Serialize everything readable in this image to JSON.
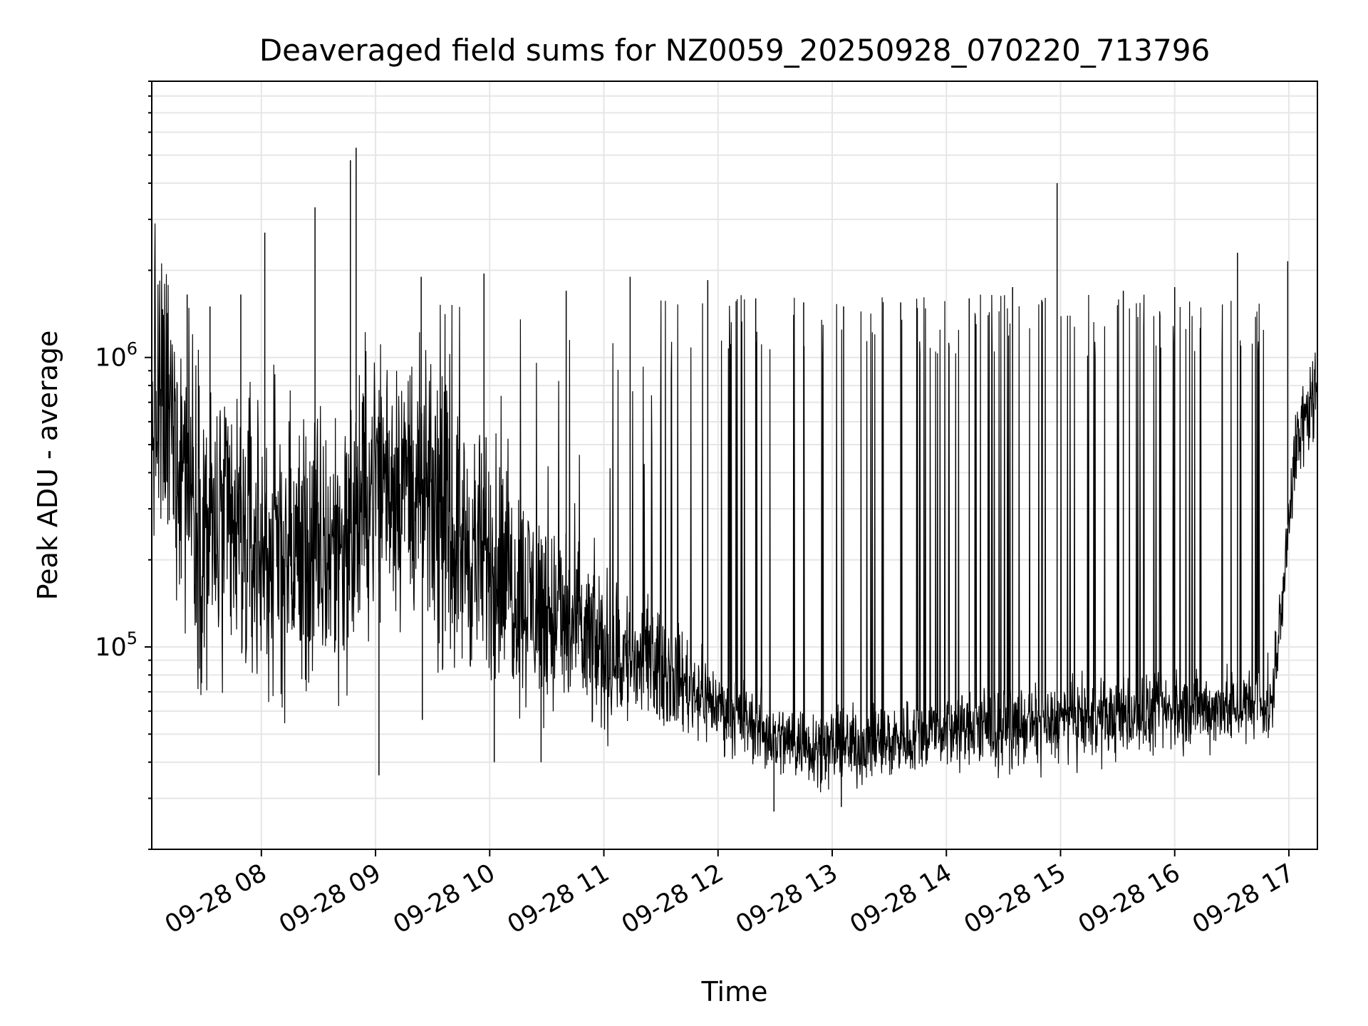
{
  "chart_data": {
    "type": "line",
    "title": "Deaveraged field sums for NZ0059_20250928_070220_713796",
    "xlabel": "Time",
    "ylabel": "Peak ADU - average",
    "yscale": "log",
    "xlim": [
      7.04,
      17.25
    ],
    "ylim": [
      20000,
      9000000
    ],
    "grid": true,
    "line_color": "#000000",
    "grid_color": "#e6e6e6",
    "x_ticks": [
      {
        "value": 8,
        "label": "09-28 08"
      },
      {
        "value": 9,
        "label": "09-28 09"
      },
      {
        "value": 10,
        "label": "09-28 10"
      },
      {
        "value": 11,
        "label": "09-28 11"
      },
      {
        "value": 12,
        "label": "09-28 12"
      },
      {
        "value": 13,
        "label": "09-28 13"
      },
      {
        "value": 14,
        "label": "09-28 14"
      },
      {
        "value": 15,
        "label": "09-28 15"
      },
      {
        "value": 16,
        "label": "09-28 16"
      },
      {
        "value": 17,
        "label": "09-28 17"
      }
    ],
    "y_major_ticks": [
      {
        "value": 100000,
        "base": "10",
        "exp": "5"
      },
      {
        "value": 1000000,
        "base": "10",
        "exp": "6"
      }
    ],
    "baseline_profile": [
      [
        7.04,
        700000
      ],
      [
        7.25,
        550000
      ],
      [
        7.5,
        250000
      ],
      [
        8.0,
        220000
      ],
      [
        8.5,
        200000
      ],
      [
        8.8,
        250000
      ],
      [
        9.0,
        400000
      ],
      [
        9.3,
        380000
      ],
      [
        9.6,
        250000
      ],
      [
        10.0,
        190000
      ],
      [
        10.5,
        130000
      ],
      [
        11.0,
        95000
      ],
      [
        11.5,
        85000
      ],
      [
        12.0,
        62000
      ],
      [
        12.5,
        48000
      ],
      [
        13.0,
        45000
      ],
      [
        13.5,
        47000
      ],
      [
        14.0,
        52000
      ],
      [
        14.5,
        52000
      ],
      [
        15.0,
        55000
      ],
      [
        15.5,
        57000
      ],
      [
        16.0,
        60000
      ],
      [
        16.5,
        62000
      ],
      [
        16.85,
        62000
      ],
      [
        16.95,
        140000
      ],
      [
        17.05,
        450000
      ],
      [
        17.25,
        800000
      ]
    ],
    "noise_band_decades": [
      [
        7.04,
        0.55
      ],
      [
        9.5,
        0.45
      ],
      [
        10.5,
        0.35
      ],
      [
        11.5,
        0.2
      ],
      [
        12.0,
        0.13
      ],
      [
        16.85,
        0.13
      ],
      [
        17.25,
        0.15
      ]
    ],
    "spikes": [
      {
        "x": 7.35,
        "y": 1650000
      },
      {
        "x": 7.55,
        "y": 1500000
      },
      {
        "x": 7.82,
        "y": 1650000
      },
      {
        "x": 8.03,
        "y": 2700000
      },
      {
        "x": 8.47,
        "y": 3300000
      },
      {
        "x": 8.78,
        "y": 4800000
      },
      {
        "x": 8.83,
        "y": 5300000
      },
      {
        "x": 9.4,
        "y": 1900000
      },
      {
        "x": 9.95,
        "y": 1950000
      },
      {
        "x": 10.67,
        "y": 1700000
      },
      {
        "x": 11.23,
        "y": 1900000
      },
      {
        "x": 11.91,
        "y": 1850000
      },
      {
        "x": 12.33,
        "y": 1600000
      },
      {
        "x": 12.75,
        "y": 1550000
      },
      {
        "x": 13.1,
        "y": 1500000
      },
      {
        "x": 13.6,
        "y": 1550000
      },
      {
        "x": 14.2,
        "y": 1600000
      },
      {
        "x": 14.58,
        "y": 1750000
      },
      {
        "x": 14.97,
        "y": 4000000
      },
      {
        "x": 15.55,
        "y": 1700000
      },
      {
        "x": 16.0,
        "y": 1750000
      },
      {
        "x": 16.55,
        "y": 2300000
      },
      {
        "x": 16.99,
        "y": 2150000
      }
    ],
    "spike_pattern": "dense intermittent spikes of ~1.0e6-1.7e6 throughout",
    "min_dips": [
      {
        "x": 9.03,
        "y": 36000
      },
      {
        "x": 9.41,
        "y": 56000
      },
      {
        "x": 10.04,
        "y": 40000
      },
      {
        "x": 10.45,
        "y": 40000
      },
      {
        "x": 12.49,
        "y": 27000
      },
      {
        "x": 13.08,
        "y": 28000
      }
    ]
  }
}
